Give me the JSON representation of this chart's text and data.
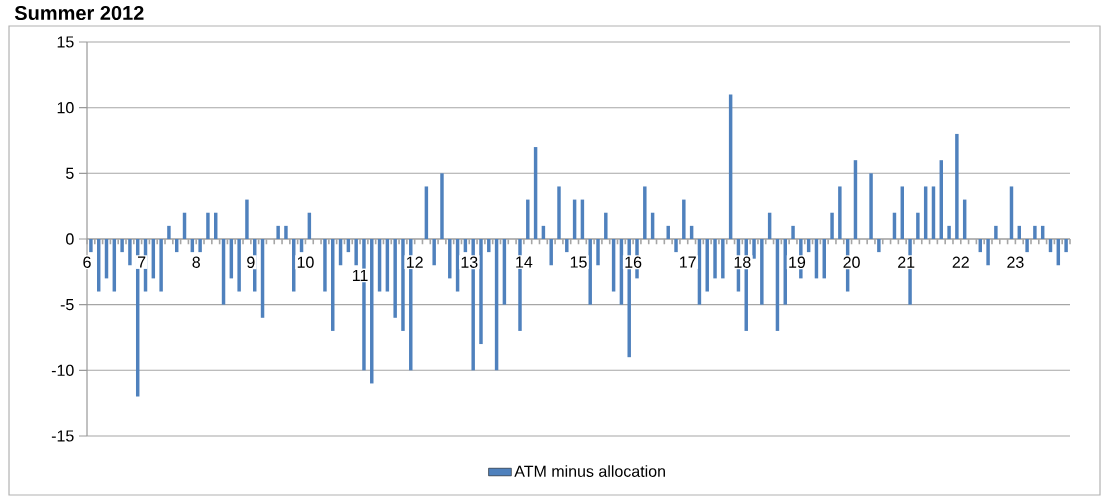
{
  "chart_data": {
    "type": "bar",
    "title": "Summer 2012",
    "categories": [
      "6",
      null,
      null,
      null,
      null,
      null,
      null,
      "7",
      null,
      null,
      null,
      null,
      null,
      null,
      "8",
      null,
      null,
      null,
      null,
      null,
      null,
      "9",
      null,
      null,
      null,
      null,
      null,
      null,
      "10",
      null,
      null,
      null,
      null,
      null,
      null,
      "11",
      null,
      null,
      null,
      null,
      null,
      null,
      "12",
      null,
      null,
      null,
      null,
      null,
      null,
      "13",
      null,
      null,
      null,
      null,
      null,
      null,
      "14",
      null,
      null,
      null,
      null,
      null,
      null,
      "15",
      null,
      null,
      null,
      null,
      null,
      null,
      "16",
      null,
      null,
      null,
      null,
      null,
      null,
      "17",
      null,
      null,
      null,
      null,
      null,
      null,
      "18",
      null,
      null,
      null,
      null,
      null,
      null,
      "19",
      null,
      null,
      null,
      null,
      null,
      null,
      "20",
      null,
      null,
      null,
      null,
      null,
      null,
      "21",
      null,
      null,
      null,
      null,
      null,
      null,
      "22",
      null,
      null,
      null,
      null,
      null,
      null,
      "23",
      null,
      null,
      null,
      null,
      null,
      null
    ],
    "series": [
      {
        "name": "ATM minus allocation",
        "color": "#4f81bd",
        "values": [
          -1,
          -4,
          -3,
          -4,
          -1,
          -2,
          -12,
          -4,
          -3,
          -4,
          1,
          -1,
          2,
          -1,
          -1,
          2,
          2,
          -5,
          -3,
          -4,
          3,
          -4,
          -6,
          null,
          1,
          1,
          -4,
          -1,
          2,
          null,
          -4,
          -7,
          -2,
          -1,
          -2,
          -10,
          -11,
          -4,
          -4,
          -6,
          -7,
          -10,
          null,
          4,
          -2,
          5,
          -3,
          -4,
          -1,
          -10,
          -8,
          -1,
          -10,
          -5,
          null,
          -7,
          3,
          7,
          1,
          -2,
          4,
          -1,
          3,
          3,
          -5,
          -2,
          2,
          -4,
          -5,
          -9,
          -3,
          4,
          2,
          null,
          1,
          -1,
          3,
          1,
          -5,
          -4,
          -3,
          -3,
          11,
          -4,
          -7,
          -1.5,
          -5,
          2,
          -7,
          -5,
          1,
          -3,
          -1,
          -3,
          -3,
          2,
          4,
          -4,
          6,
          null,
          5,
          -1,
          null,
          2,
          4,
          -5,
          2,
          4,
          4,
          6,
          1,
          8,
          3,
          null,
          -1,
          -2,
          1,
          null,
          4,
          1,
          -1,
          1,
          1,
          -1,
          -2,
          -1
        ]
      }
    ],
    "ylim": [
      -15,
      15
    ],
    "yticks": [
      -15,
      -10,
      -5,
      0,
      5,
      10,
      15
    ],
    "grid": "y",
    "legend": "bottom"
  }
}
